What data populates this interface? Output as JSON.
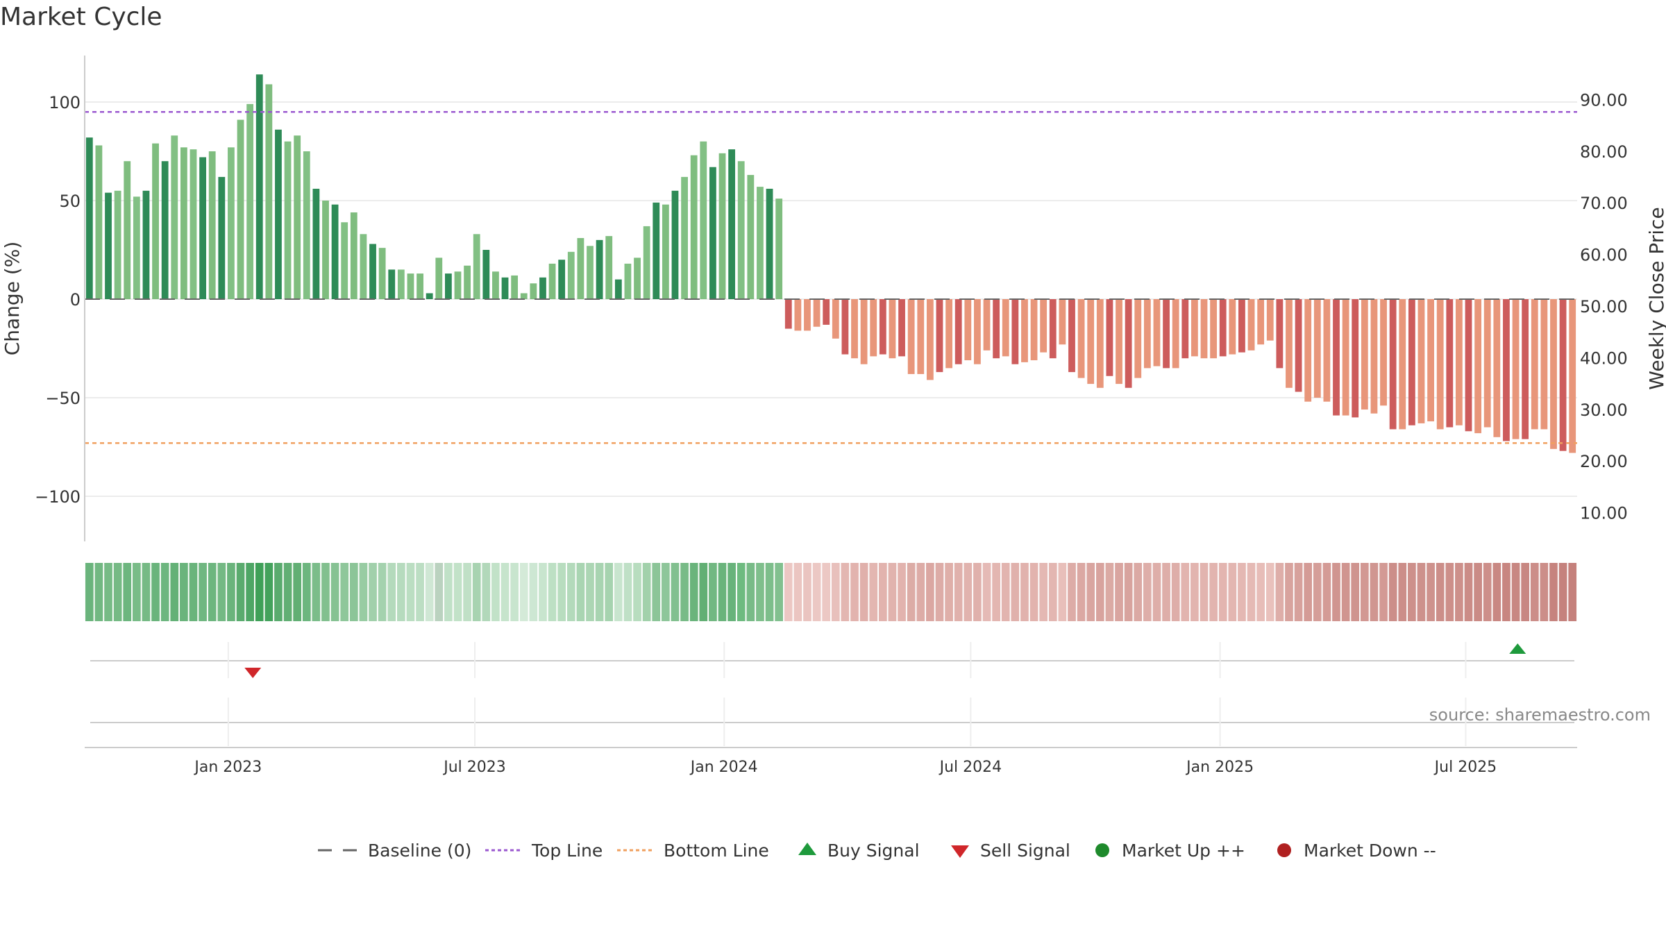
{
  "title": "Market Cycle",
  "source": "source: sharemaestro.com",
  "legend": [
    {
      "label": "Baseline (0)",
      "icon": "dash-line-icon",
      "color": "#666666"
    },
    {
      "label": "Top Line",
      "icon": "dotted-line-icon",
      "color": "#9b59d0"
    },
    {
      "label": "Bottom Line",
      "icon": "dotted-line-icon",
      "color": "#f0a060"
    },
    {
      "label": "Buy Signal",
      "icon": "triangle-up-icon",
      "color": "#1e9a3c"
    },
    {
      "label": "Sell Signal",
      "icon": "triangle-down-icon",
      "color": "#d0262a"
    },
    {
      "label": "Market Up ++",
      "icon": "circle-icon",
      "color": "#1e8a2c"
    },
    {
      "label": "Market Down --",
      "icon": "circle-icon",
      "color": "#b02020"
    }
  ],
  "chart_data": {
    "type": "bar",
    "ylabel": "Change (%)",
    "y2label": "Weekly Close Price",
    "ylim": [
      -122,
      123
    ],
    "yticks": [
      100,
      50,
      0,
      -50,
      -100
    ],
    "ytick_labels": [
      "100",
      "50",
      "0",
      "−50",
      "−100"
    ],
    "y2ticks": [
      90,
      80,
      70,
      60,
      50,
      40,
      30,
      20,
      10
    ],
    "y2tick_labels": [
      "90.00",
      "80.00",
      "70.00",
      "60.00",
      "50.00",
      "40.00",
      "30.00",
      "20.00",
      "10.00"
    ],
    "top_line": 95,
    "bottom_line": -73,
    "baseline": 0,
    "x_ticks": [
      {
        "label": "Jan 2023",
        "index": 14.7
      },
      {
        "label": "Jul 2023",
        "index": 40.8
      },
      {
        "label": "Jan 2024",
        "index": 67.2
      },
      {
        "label": "Jul 2024",
        "index": 93.3
      },
      {
        "label": "Jan 2025",
        "index": 119.7
      },
      {
        "label": "Jul 2025",
        "index": 145.7
      }
    ],
    "values": [
      82,
      78,
      54,
      55,
      70,
      52,
      55,
      79,
      70,
      83,
      77,
      76,
      72,
      75,
      62,
      77,
      91,
      99,
      114,
      109,
      86,
      80,
      83,
      75,
      56,
      50,
      48,
      39,
      44,
      33,
      28,
      26,
      15,
      15,
      13,
      13,
      3,
      21,
      13,
      14,
      17,
      33,
      25,
      14,
      11,
      12,
      3,
      8,
      11,
      18,
      20,
      24,
      31,
      27,
      30,
      32,
      10,
      18,
      21,
      37,
      49,
      48,
      55,
      62,
      73,
      80,
      67,
      74,
      76,
      70,
      63,
      57,
      56,
      51,
      -15,
      -16,
      -16,
      -14,
      -13,
      -20,
      -28,
      -30,
      -33,
      -29,
      -28,
      -30,
      -29,
      -38,
      -38,
      -41,
      -37,
      -35,
      -33,
      -31,
      -33,
      -26,
      -30,
      -29,
      -33,
      -32,
      -31,
      -27,
      -30,
      -23,
      -37,
      -40,
      -43,
      -45,
      -39,
      -43,
      -45,
      -40,
      -35,
      -34,
      -35,
      -35,
      -30,
      -29,
      -30,
      -30,
      -29,
      -28,
      -27,
      -26,
      -23,
      -21,
      -35,
      -45,
      -47,
      -52,
      -50,
      -52,
      -59,
      -59,
      -60,
      -56,
      -58,
      -54,
      -66,
      -66,
      -64,
      -63,
      -62,
      -66,
      -65,
      -64,
      -67,
      -68,
      -65,
      -70,
      -72,
      -71,
      -71,
      -66,
      -66,
      -76,
      -77,
      -78
    ],
    "heat_colors": [
      "#6ab47c",
      "#72b882",
      "#77bb86",
      "#76ba85",
      "#6db67f",
      "#79bc88",
      "#76ba85",
      "#6ab47c",
      "#6db67f",
      "#64b177",
      "#6ab47c",
      "#6ab47c",
      "#70b781",
      "#6db67f",
      "#74b984",
      "#6ab47c",
      "#5aab6e",
      "#4ea665",
      "#3fa058",
      "#44a25c",
      "#5aab6e",
      "#62af74",
      "#62af74",
      "#6db67f",
      "#7bbd8a",
      "#82c08f",
      "#86c293",
      "#8fc79b",
      "#8cc598",
      "#98cca3",
      "#a1d0ab",
      "#a4d2ae",
      "#b4dabc",
      "#b6dbbe",
      "#bbdec2",
      "#bcdec3",
      "#cfe7d4",
      "#bad2bf",
      "#c0e1c7",
      "#c2e2c8",
      "#c0e0c6",
      "#a8d3b1",
      "#b2d8ba",
      "#c2e2c8",
      "#c6e4cc",
      "#c8e5ce",
      "#d4ead8",
      "#cde7d3",
      "#c8e5ce",
      "#bde0c4",
      "#b8ddbf",
      "#b3dabb",
      "#a9d5b2",
      "#acd6b4",
      "#a8d4b1",
      "#a6d3af",
      "#c8e5ce",
      "#bfe0c6",
      "#b8ddbf",
      "#a2d1ab",
      "#8cc598",
      "#8ec69a",
      "#82c08f",
      "#78bb87",
      "#6ab47c",
      "#62af74",
      "#72b882",
      "#6ab47c",
      "#68b37b",
      "#6ebb80",
      "#78bb87",
      "#7fbf8c",
      "#7dbe8b",
      "#82c08f",
      "#ecc7c3",
      "#ebc5c1",
      "#eac4c0",
      "#ecc8c4",
      "#ecc8c4",
      "#e8c0bc",
      "#e3b6b1",
      "#e2b3ae",
      "#e0b0ab",
      "#e3b6b1",
      "#e2b3ae",
      "#e1b3ae",
      "#e2b3ae",
      "#dcaca6",
      "#ddaca7",
      "#dba7a2",
      "#ddaca7",
      "#dfafa9",
      "#e0b1ac",
      "#e1b3ae",
      "#e0b1ac",
      "#e5bab6",
      "#e3b6b1",
      "#e2b4af",
      "#e0b1ac",
      "#e1b2ad",
      "#e2b3ae",
      "#e4b8b3",
      "#e3b6b1",
      "#e8bfba",
      "#ddaca7",
      "#dba8a3",
      "#d9a5a0",
      "#d8a39e",
      "#dbaaa4",
      "#d9a5a0",
      "#d8a39e",
      "#dba9a4",
      "#deaea9",
      "#deaea9",
      "#deaea9",
      "#deaea9",
      "#e2b4af",
      "#e2b4af",
      "#e2b4af",
      "#e2b4af",
      "#e3b5b0",
      "#e3b6b1",
      "#e4b8b3",
      "#e5bab5",
      "#e7bdb8",
      "#e9c1bc",
      "#deaea9",
      "#d8a39e",
      "#d7a19c",
      "#d49b96",
      "#d59e99",
      "#d49b96",
      "#d09590",
      "#d09590",
      "#cf948f",
      "#d29893",
      "#d09691",
      "#d39a95",
      "#cc8e89",
      "#cc8e89",
      "#cd908b",
      "#cd918c",
      "#ce928d",
      "#cc8e89",
      "#cd8f8a",
      "#cd908b",
      "#cb8c87",
      "#ca8b86",
      "#cd8f8a",
      "#c98883",
      "#c88681",
      "#c88782",
      "#c88782",
      "#cc8e89",
      "#cc8e89",
      "#c6837e",
      "#c5827d",
      "#c5817c"
    ],
    "buy_signals": [
      {
        "index": 151.2,
        "label": "Buy Signal"
      }
    ],
    "sell_signals": [
      {
        "index": 17.3,
        "label": "Sell Signal"
      }
    ]
  }
}
